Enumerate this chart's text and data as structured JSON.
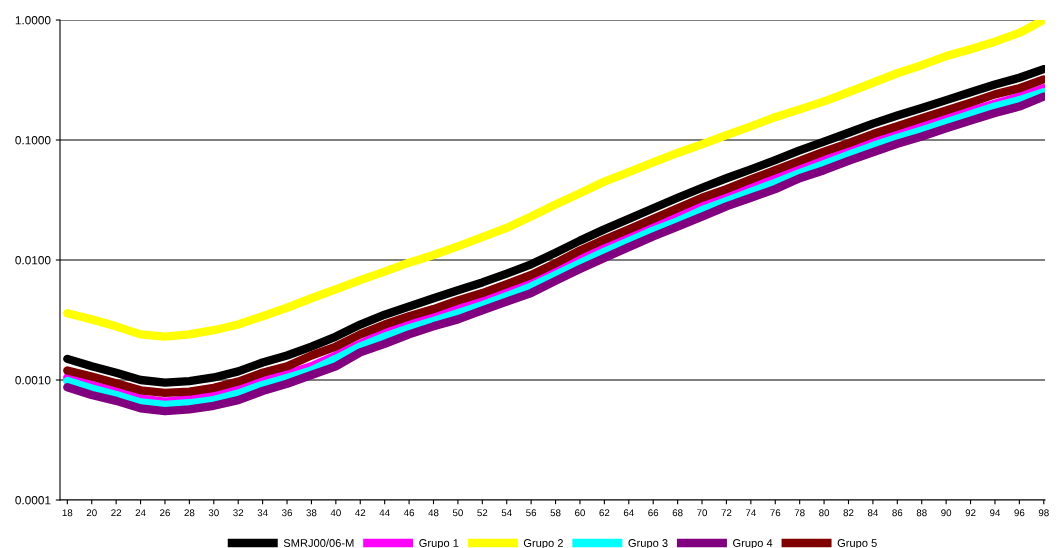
{
  "chart_data": {
    "type": "line",
    "categories": [
      "18",
      "20",
      "22",
      "24",
      "26",
      "28",
      "30",
      "32",
      "34",
      "36",
      "38",
      "40",
      "42",
      "44",
      "46",
      "48",
      "50",
      "52",
      "54",
      "56",
      "58",
      "60",
      "62",
      "64",
      "66",
      "68",
      "70",
      "72",
      "74",
      "76",
      "78",
      "80",
      "82",
      "84",
      "86",
      "88",
      "90",
      "92",
      "94",
      "96",
      "98"
    ],
    "log": "y",
    "ylim": [
      0.0001,
      1.0
    ],
    "yticks": [
      {
        "value": 0.0001,
        "label": "0.0001"
      },
      {
        "value": 0.001,
        "label": "0.0010"
      },
      {
        "value": 0.01,
        "label": "0.0100"
      },
      {
        "value": 0.1,
        "label": "0.1000"
      },
      {
        "value": 1.0,
        "label": "1.0000"
      }
    ],
    "grid": "y",
    "legend": "bottom",
    "marker": "none",
    "line_style": "solid",
    "series": [
      {
        "name": "SMRJ00/06-M",
        "color": "#000000",
        "values": [
          0.0015,
          0.0013,
          0.00115,
          0.001,
          0.00095,
          0.00098,
          0.00105,
          0.00118,
          0.0014,
          0.0016,
          0.0019,
          0.0023,
          0.0029,
          0.0035,
          0.0041,
          0.0048,
          0.0056,
          0.0065,
          0.0077,
          0.0092,
          0.0115,
          0.0145,
          0.018,
          0.022,
          0.027,
          0.033,
          0.04,
          0.048,
          0.057,
          0.068,
          0.082,
          0.097,
          0.115,
          0.137,
          0.16,
          0.185,
          0.215,
          0.25,
          0.29,
          0.33,
          0.39
        ]
      },
      {
        "name": "Grupo 1",
        "color": "#ff00ff",
        "values": [
          0.00105,
          0.00091,
          0.0008,
          0.0007,
          0.00066,
          0.00069,
          0.00074,
          0.00083,
          0.00098,
          0.00112,
          0.0013,
          0.0016,
          0.002,
          0.0025,
          0.0029,
          0.0034,
          0.0039,
          0.0046,
          0.0054,
          0.0064,
          0.008,
          0.0102,
          0.0126,
          0.0154,
          0.019,
          0.023,
          0.028,
          0.034,
          0.04,
          0.048,
          0.057,
          0.068,
          0.08,
          0.096,
          0.112,
          0.13,
          0.15,
          0.175,
          0.2,
          0.23,
          0.27
        ]
      },
      {
        "name": "Grupo 2",
        "color": "#ffff00",
        "values": [
          0.0036,
          0.0032,
          0.0028,
          0.0024,
          0.0023,
          0.0024,
          0.0026,
          0.0029,
          0.0034,
          0.004,
          0.0048,
          0.0057,
          0.0068,
          0.008,
          0.0095,
          0.011,
          0.013,
          0.0155,
          0.0185,
          0.023,
          0.029,
          0.036,
          0.045,
          0.054,
          0.065,
          0.078,
          0.092,
          0.11,
          0.13,
          0.155,
          0.18,
          0.21,
          0.25,
          0.3,
          0.36,
          0.42,
          0.5,
          0.57,
          0.66,
          0.78,
          1.0
        ]
      },
      {
        "name": "Grupo 3",
        "color": "#00ffff",
        "values": [
          0.00098,
          0.00085,
          0.00075,
          0.00065,
          0.00062,
          0.00064,
          0.00068,
          0.00077,
          0.00091,
          0.00104,
          0.0012,
          0.0015,
          0.0019,
          0.0023,
          0.0027,
          0.0031,
          0.0036,
          0.0042,
          0.005,
          0.006,
          0.0075,
          0.0094,
          0.0117,
          0.0143,
          0.0176,
          0.021,
          0.026,
          0.031,
          0.037,
          0.044,
          0.053,
          0.063,
          0.075,
          0.089,
          0.104,
          0.12,
          0.14,
          0.163,
          0.19,
          0.215,
          0.25
        ]
      },
      {
        "name": "Grupo 4",
        "color": "#800080",
        "values": [
          0.00087,
          0.00075,
          0.00067,
          0.00058,
          0.00055,
          0.00057,
          0.00061,
          0.00068,
          0.00081,
          0.00093,
          0.0011,
          0.0013,
          0.0017,
          0.002,
          0.0024,
          0.0028,
          0.0032,
          0.0038,
          0.0045,
          0.0053,
          0.0067,
          0.0084,
          0.0104,
          0.0128,
          0.0157,
          0.019,
          0.023,
          0.028,
          0.033,
          0.039,
          0.048,
          0.056,
          0.067,
          0.079,
          0.093,
          0.107,
          0.125,
          0.145,
          0.168,
          0.19,
          0.23
        ]
      },
      {
        "name": "Grupo 5",
        "color": "#800000",
        "values": [
          0.0012,
          0.00107,
          0.00094,
          0.00082,
          0.00078,
          0.0008,
          0.00086,
          0.00097,
          0.00115,
          0.0013,
          0.0016,
          0.0019,
          0.0024,
          0.0029,
          0.0034,
          0.0039,
          0.0046,
          0.0053,
          0.0063,
          0.0075,
          0.0094,
          0.012,
          0.0148,
          0.018,
          0.022,
          0.027,
          0.033,
          0.039,
          0.047,
          0.056,
          0.067,
          0.08,
          0.094,
          0.112,
          0.13,
          0.152,
          0.176,
          0.205,
          0.24,
          0.27,
          0.32
        ]
      }
    ]
  }
}
